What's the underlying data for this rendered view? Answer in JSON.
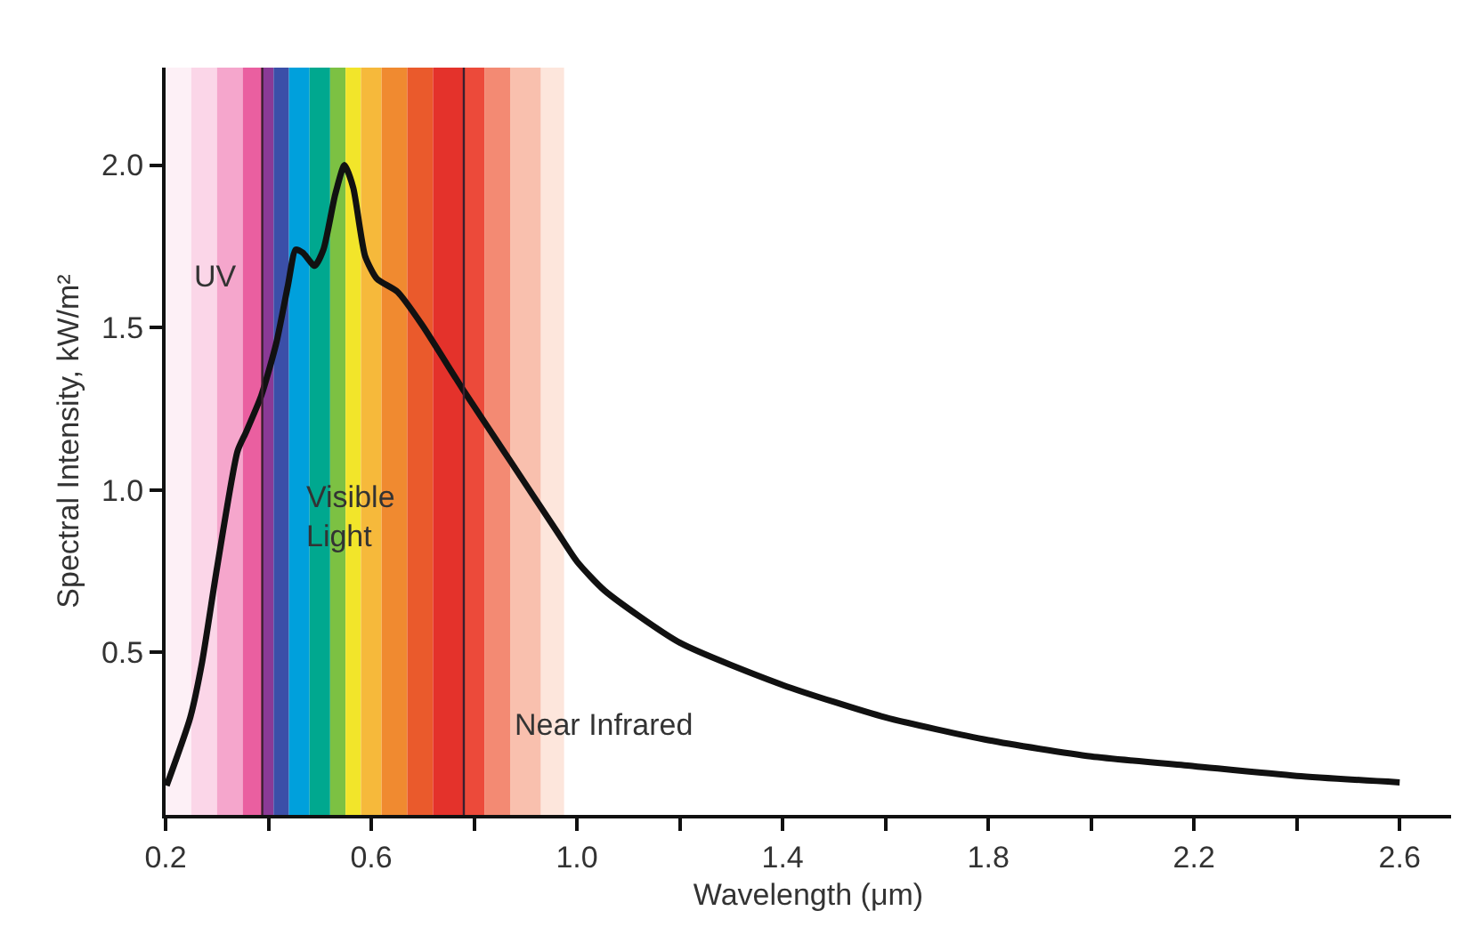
{
  "chart_data": {
    "type": "line",
    "xlabel": "Wavelength (μm)",
    "ylabel": "Spectral Intensity, kW/m²",
    "x": [
      0.202,
      0.248,
      0.271,
      0.3,
      0.34,
      0.357,
      0.386,
      0.415,
      0.438,
      0.453,
      0.467,
      0.49,
      0.507,
      0.53,
      0.548,
      0.565,
      0.588,
      0.611,
      0.651,
      0.698,
      0.778,
      0.87,
      0.962,
      1.0,
      1.054,
      1.2,
      1.4,
      1.6,
      1.8,
      2.0,
      2.2,
      2.4,
      2.6
    ],
    "series": [
      {
        "color": "#111111",
        "values": [
          0.09,
          0.3,
          0.47,
          0.76,
          1.12,
          1.18,
          1.29,
          1.45,
          1.63,
          1.74,
          1.73,
          1.69,
          1.74,
          1.91,
          2.0,
          1.93,
          1.72,
          1.65,
          1.61,
          1.51,
          1.31,
          1.09,
          0.87,
          0.78,
          0.69,
          0.53,
          0.4,
          0.3,
          0.23,
          0.18,
          0.15,
          0.12,
          0.1
        ]
      }
    ],
    "xlim": [
      0.2,
      2.7
    ],
    "ylim": [
      0,
      2.3
    ],
    "xticks": [
      {
        "value": 0.2,
        "label": "0.2"
      },
      {
        "value": 0.4,
        "label": null
      },
      {
        "value": 0.6,
        "label": "0.6"
      },
      {
        "value": 0.8,
        "label": null
      },
      {
        "value": 1.0,
        "label": "1.0"
      },
      {
        "value": 1.2,
        "label": null
      },
      {
        "value": 1.4,
        "label": "1.4"
      },
      {
        "value": 1.6,
        "label": null
      },
      {
        "value": 1.8,
        "label": "1.8"
      },
      {
        "value": 2.0,
        "label": null
      },
      {
        "value": 2.2,
        "label": "2.2"
      },
      {
        "value": 2.4,
        "label": null
      },
      {
        "value": 2.6,
        "label": "2.6"
      }
    ],
    "yticks": [
      0.5,
      {
        "value": 1,
        "label": "1.0"
      },
      1.5,
      {
        "value": 2,
        "label": "2.0"
      }
    ],
    "marker": "none",
    "line_style": "solid",
    "bands": [
      {
        "axis": "x",
        "from": 0.2,
        "to": 0.25,
        "color": "#fdf0f6"
      },
      {
        "axis": "x",
        "from": 0.25,
        "to": 0.3,
        "color": "#fbd6e8"
      },
      {
        "axis": "x",
        "from": 0.3,
        "to": 0.35,
        "color": "#f5a6cc"
      },
      {
        "axis": "x",
        "from": 0.35,
        "to": 0.388,
        "color": "#ea5fa0"
      },
      {
        "axis": "x",
        "from": 0.388,
        "to": 0.41,
        "color": "#8a3a96"
      },
      {
        "axis": "x",
        "from": 0.41,
        "to": 0.44,
        "color": "#3b4fa8"
      },
      {
        "axis": "x",
        "from": 0.44,
        "to": 0.48,
        "color": "#00a0dc"
      },
      {
        "axis": "x",
        "from": 0.48,
        "to": 0.52,
        "color": "#00a88f"
      },
      {
        "axis": "x",
        "from": 0.52,
        "to": 0.55,
        "color": "#7cc143"
      },
      {
        "axis": "x",
        "from": 0.55,
        "to": 0.58,
        "color": "#f2e52a"
      },
      {
        "axis": "x",
        "from": 0.58,
        "to": 0.62,
        "color": "#f6b93b"
      },
      {
        "axis": "x",
        "from": 0.62,
        "to": 0.67,
        "color": "#f08a30"
      },
      {
        "axis": "x",
        "from": 0.67,
        "to": 0.72,
        "color": "#ea5a2c"
      },
      {
        "axis": "x",
        "from": 0.72,
        "to": 0.78,
        "color": "#e4322b"
      },
      {
        "axis": "x",
        "from": 0.78,
        "to": 0.82,
        "color": "#ec4a3a"
      },
      {
        "axis": "x",
        "from": 0.82,
        "to": 0.87,
        "color": "#f38a73"
      },
      {
        "axis": "x",
        "from": 0.87,
        "to": 0.93,
        "color": "#f9c0ae"
      },
      {
        "axis": "x",
        "from": 0.93,
        "to": 0.975,
        "color": "#fde6dc"
      }
    ],
    "ref_lines": [
      {
        "axis": "x",
        "value": 0.388,
        "color": "#3a1f2e",
        "line_style": "solid"
      },
      {
        "axis": "x",
        "value": 0.78,
        "color": "#3a1f2e",
        "line_style": "solid"
      }
    ],
    "annotations": [
      "UV",
      "Visible\nLight",
      "Near Infrared"
    ]
  }
}
